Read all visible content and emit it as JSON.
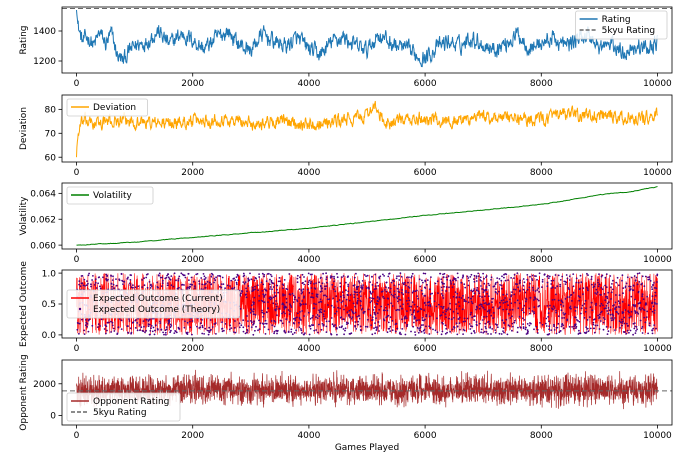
{
  "chart_data": [
    {
      "type": "line",
      "ylabel": "Rating",
      "xlim": [
        -250,
        10250
      ],
      "ylim": [
        1120,
        1560
      ],
      "xticks": [
        0,
        2000,
        4000,
        6000,
        8000,
        10000
      ],
      "yticks": [
        1200,
        1400
      ],
      "legend_position": "top-right",
      "series": [
        {
          "name": "Rating",
          "color": "#1f77b4",
          "style": "solid",
          "x": [
            0,
            20,
            60,
            100,
            200,
            300,
            400,
            500,
            600,
            700,
            800,
            900,
            1000,
            1200,
            1400,
            1600,
            1800,
            2000,
            2200,
            2400,
            2600,
            2800,
            3000,
            3200,
            3400,
            3600,
            3800,
            4000,
            4200,
            4400,
            4600,
            4800,
            5000,
            5200,
            5400,
            5600,
            5800,
            6000,
            6200,
            6400,
            6600,
            6800,
            7000,
            7200,
            7400,
            7600,
            7800,
            8000,
            8200,
            8400,
            8600,
            8800,
            9000,
            9200,
            9400,
            9600,
            9800,
            10000
          ],
          "y": [
            1540,
            1450,
            1380,
            1330,
            1360,
            1300,
            1390,
            1310,
            1380,
            1240,
            1200,
            1260,
            1300,
            1330,
            1400,
            1310,
            1380,
            1340,
            1280,
            1350,
            1400,
            1310,
            1270,
            1380,
            1330,
            1300,
            1350,
            1280,
            1240,
            1330,
            1360,
            1300,
            1270,
            1380,
            1320,
            1290,
            1250,
            1220,
            1290,
            1330,
            1300,
            1360,
            1310,
            1280,
            1320,
            1380,
            1290,
            1320,
            1350,
            1300,
            1340,
            1380,
            1290,
            1310,
            1260,
            1300,
            1280,
            1330
          ],
          "noise": 45,
          "samples": 1400
        },
        {
          "name": "5kyu Rating",
          "color": "#666666",
          "style": "dashed",
          "y": 1550
        }
      ]
    },
    {
      "type": "line",
      "ylabel": "Deviation",
      "xlim": [
        -250,
        10250
      ],
      "ylim": [
        58,
        86
      ],
      "xticks": [
        0,
        2000,
        4000,
        6000,
        8000,
        10000
      ],
      "yticks": [
        60,
        70,
        80
      ],
      "legend_position": "top-left",
      "series": [
        {
          "name": "Deviation",
          "color": "#ffa500",
          "style": "solid",
          "x": [
            0,
            10,
            40,
            80,
            150,
            300,
            600,
            1000,
            1500,
            2000,
            2500,
            3000,
            3500,
            4000,
            4500,
            5000,
            5100,
            5300,
            5500,
            6000,
            6500,
            7000,
            7500,
            8000,
            8500,
            9000,
            9500,
            10000
          ],
          "y": [
            60,
            66,
            71,
            74,
            75,
            74,
            75,
            75,
            74,
            75,
            76,
            74,
            75,
            74,
            75,
            77,
            82,
            74,
            75,
            76,
            75,
            77,
            76,
            76,
            78,
            77,
            76,
            77
          ],
          "noise": 2.2,
          "samples": 1400
        }
      ]
    },
    {
      "type": "line",
      "ylabel": "Volatility",
      "xlim": [
        -250,
        10250
      ],
      "ylim": [
        0.0597,
        0.0648
      ],
      "xticks": [
        0,
        2000,
        4000,
        6000,
        8000,
        10000
      ],
      "yticks": [
        0.06,
        0.062,
        0.064
      ],
      "ytick_labels": [
        "0.060",
        "0.062",
        "0.064"
      ],
      "legend_position": "top-left",
      "series": [
        {
          "name": "Volatility",
          "color": "#008000",
          "style": "solid",
          "x": [
            0,
            1000,
            2000,
            3000,
            4000,
            5000,
            6000,
            7000,
            8000,
            8500,
            9000,
            9500,
            10000
          ],
          "y": [
            0.06,
            0.06023,
            0.0606,
            0.06095,
            0.0613,
            0.0618,
            0.0623,
            0.0627,
            0.06315,
            0.0635,
            0.0639,
            0.0641,
            0.0645
          ],
          "noise": 2e-05,
          "samples": 600
        }
      ]
    },
    {
      "type": "scatter",
      "ylabel": "Expected Outcome",
      "xlim": [
        -250,
        10250
      ],
      "ylim": [
        -0.05,
        1.05
      ],
      "xticks": [
        0,
        2000,
        4000,
        6000,
        8000,
        10000
      ],
      "yticks": [
        0.0,
        0.5,
        1.0
      ],
      "ytick_labels": [
        "0.0",
        "0.5",
        "1.0"
      ],
      "legend_position": "center-left",
      "x_range": [
        0,
        10000
      ],
      "y_range": [
        0,
        1
      ],
      "series": [
        {
          "name": "Expected Outcome (Current)",
          "color": "#ff0000",
          "style": "line"
        },
        {
          "name": "Expected Outcome (Theory)",
          "color": "#4b0082",
          "style": "points"
        }
      ]
    },
    {
      "type": "line",
      "ylabel": "Opponent Rating",
      "xlabel": "Games Played",
      "xlim": [
        -250,
        10250
      ],
      "ylim": [
        -600,
        3500
      ],
      "xticks": [
        0,
        2000,
        4000,
        6000,
        8000,
        10000
      ],
      "yticks": [
        0,
        2000
      ],
      "legend_position": "bottom-left",
      "series": [
        {
          "name": "Opponent Rating",
          "color": "#a52a2a",
          "style": "solid",
          "center": 1600,
          "spread": 1000,
          "min": -400,
          "max": 3300,
          "samples": 3000
        },
        {
          "name": "5kyu Rating",
          "color": "#666666",
          "style": "dashed",
          "y": 1550
        }
      ]
    }
  ]
}
